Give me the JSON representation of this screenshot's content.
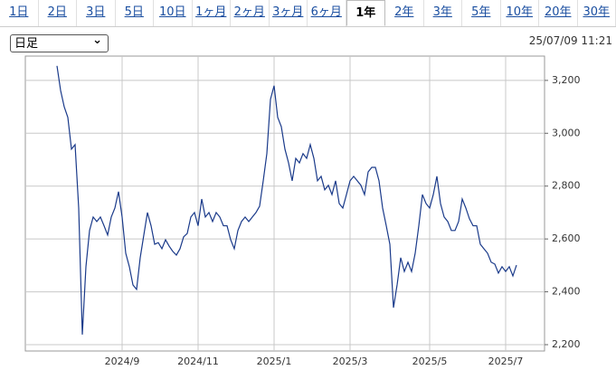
{
  "tabs": [
    "1日",
    "2日",
    "3日",
    "5日",
    "10日",
    "1ヶ月",
    "2ヶ月",
    "3ヶ月",
    "6ヶ月",
    "1年",
    "2年",
    "3年",
    "5年",
    "10年",
    "20年",
    "30年"
  ],
  "active_tab": 9,
  "period_select": "日足",
  "timestamp": "25/07/09 11:21",
  "chart_data": {
    "type": "line",
    "categories": [
      null,
      null,
      null,
      null,
      null,
      null,
      null,
      null,
      null,
      null,
      null,
      null,
      null,
      null,
      null,
      null,
      null,
      null,
      "2024/9",
      null,
      null,
      null,
      null,
      null,
      null,
      null,
      null,
      null,
      null,
      null,
      null,
      null,
      null,
      null,
      null,
      null,
      null,
      null,
      null,
      "2024/11",
      null,
      null,
      null,
      null,
      null,
      null,
      null,
      null,
      null,
      null,
      null,
      null,
      null,
      null,
      null,
      null,
      null,
      null,
      null,
      null,
      "2025/1",
      null,
      null,
      null,
      null,
      null,
      null,
      null,
      null,
      null,
      null,
      null,
      null,
      null,
      null,
      null,
      null,
      null,
      null,
      null,
      null,
      "2025/3",
      null,
      null,
      null,
      null,
      null,
      null,
      null,
      null,
      null,
      null,
      null,
      null,
      null,
      null,
      null,
      null,
      null,
      null,
      null,
      null,
      null,
      "2025/5",
      null,
      null,
      null,
      null,
      null,
      null,
      null,
      null,
      null,
      null,
      null,
      null,
      null,
      null,
      null,
      null,
      null,
      null,
      null,
      null,
      "2025/7",
      null,
      null,
      null
    ],
    "series": [
      {
        "color": "#1a3a8a",
        "values": [
          3255,
          3162,
          3100,
          3060,
          2940,
          2957,
          2717,
          2238,
          2495,
          2632,
          2683,
          2666,
          2683,
          2650,
          2615,
          2683,
          2717,
          2779,
          2683,
          2546,
          2495,
          2426,
          2409,
          2529,
          2615,
          2700,
          2650,
          2580,
          2586,
          2563,
          2597,
          2573,
          2553,
          2539,
          2563,
          2608,
          2621,
          2683,
          2700,
          2650,
          2751,
          2683,
          2700,
          2666,
          2700,
          2683,
          2650,
          2650,
          2597,
          2563,
          2632,
          2666,
          2683,
          2666,
          2683,
          2700,
          2724,
          2820,
          2923,
          3128,
          3180,
          3060,
          3025,
          2940,
          2888,
          2820,
          2905,
          2888,
          2923,
          2905,
          2957,
          2905,
          2820,
          2837,
          2786,
          2803,
          2768,
          2820,
          2734,
          2717,
          2768,
          2820,
          2837,
          2820,
          2803,
          2768,
          2854,
          2871,
          2871,
          2820,
          2717,
          2650,
          2580,
          2340,
          2426,
          2529,
          2477,
          2512,
          2477,
          2546,
          2650,
          2768,
          2734,
          2717,
          2768,
          2837,
          2734,
          2683,
          2666,
          2632,
          2632,
          2666,
          2751,
          2717,
          2676,
          2650,
          2650,
          2580,
          2563,
          2546,
          2512,
          2505,
          2471,
          2495,
          2477,
          2495,
          2460,
          2501
        ]
      }
    ],
    "ylim": [
      2176,
      3292
    ],
    "yticks": [
      {
        "value": 2200,
        "label": "2,200"
      },
      {
        "value": 2400,
        "label": "2,400"
      },
      {
        "value": 2600,
        "label": "2,600"
      },
      {
        "value": 2800,
        "label": "2,800"
      },
      {
        "value": 3000,
        "label": "3,000"
      },
      {
        "value": 3200,
        "label": "3,200"
      }
    ],
    "grid": true
  }
}
